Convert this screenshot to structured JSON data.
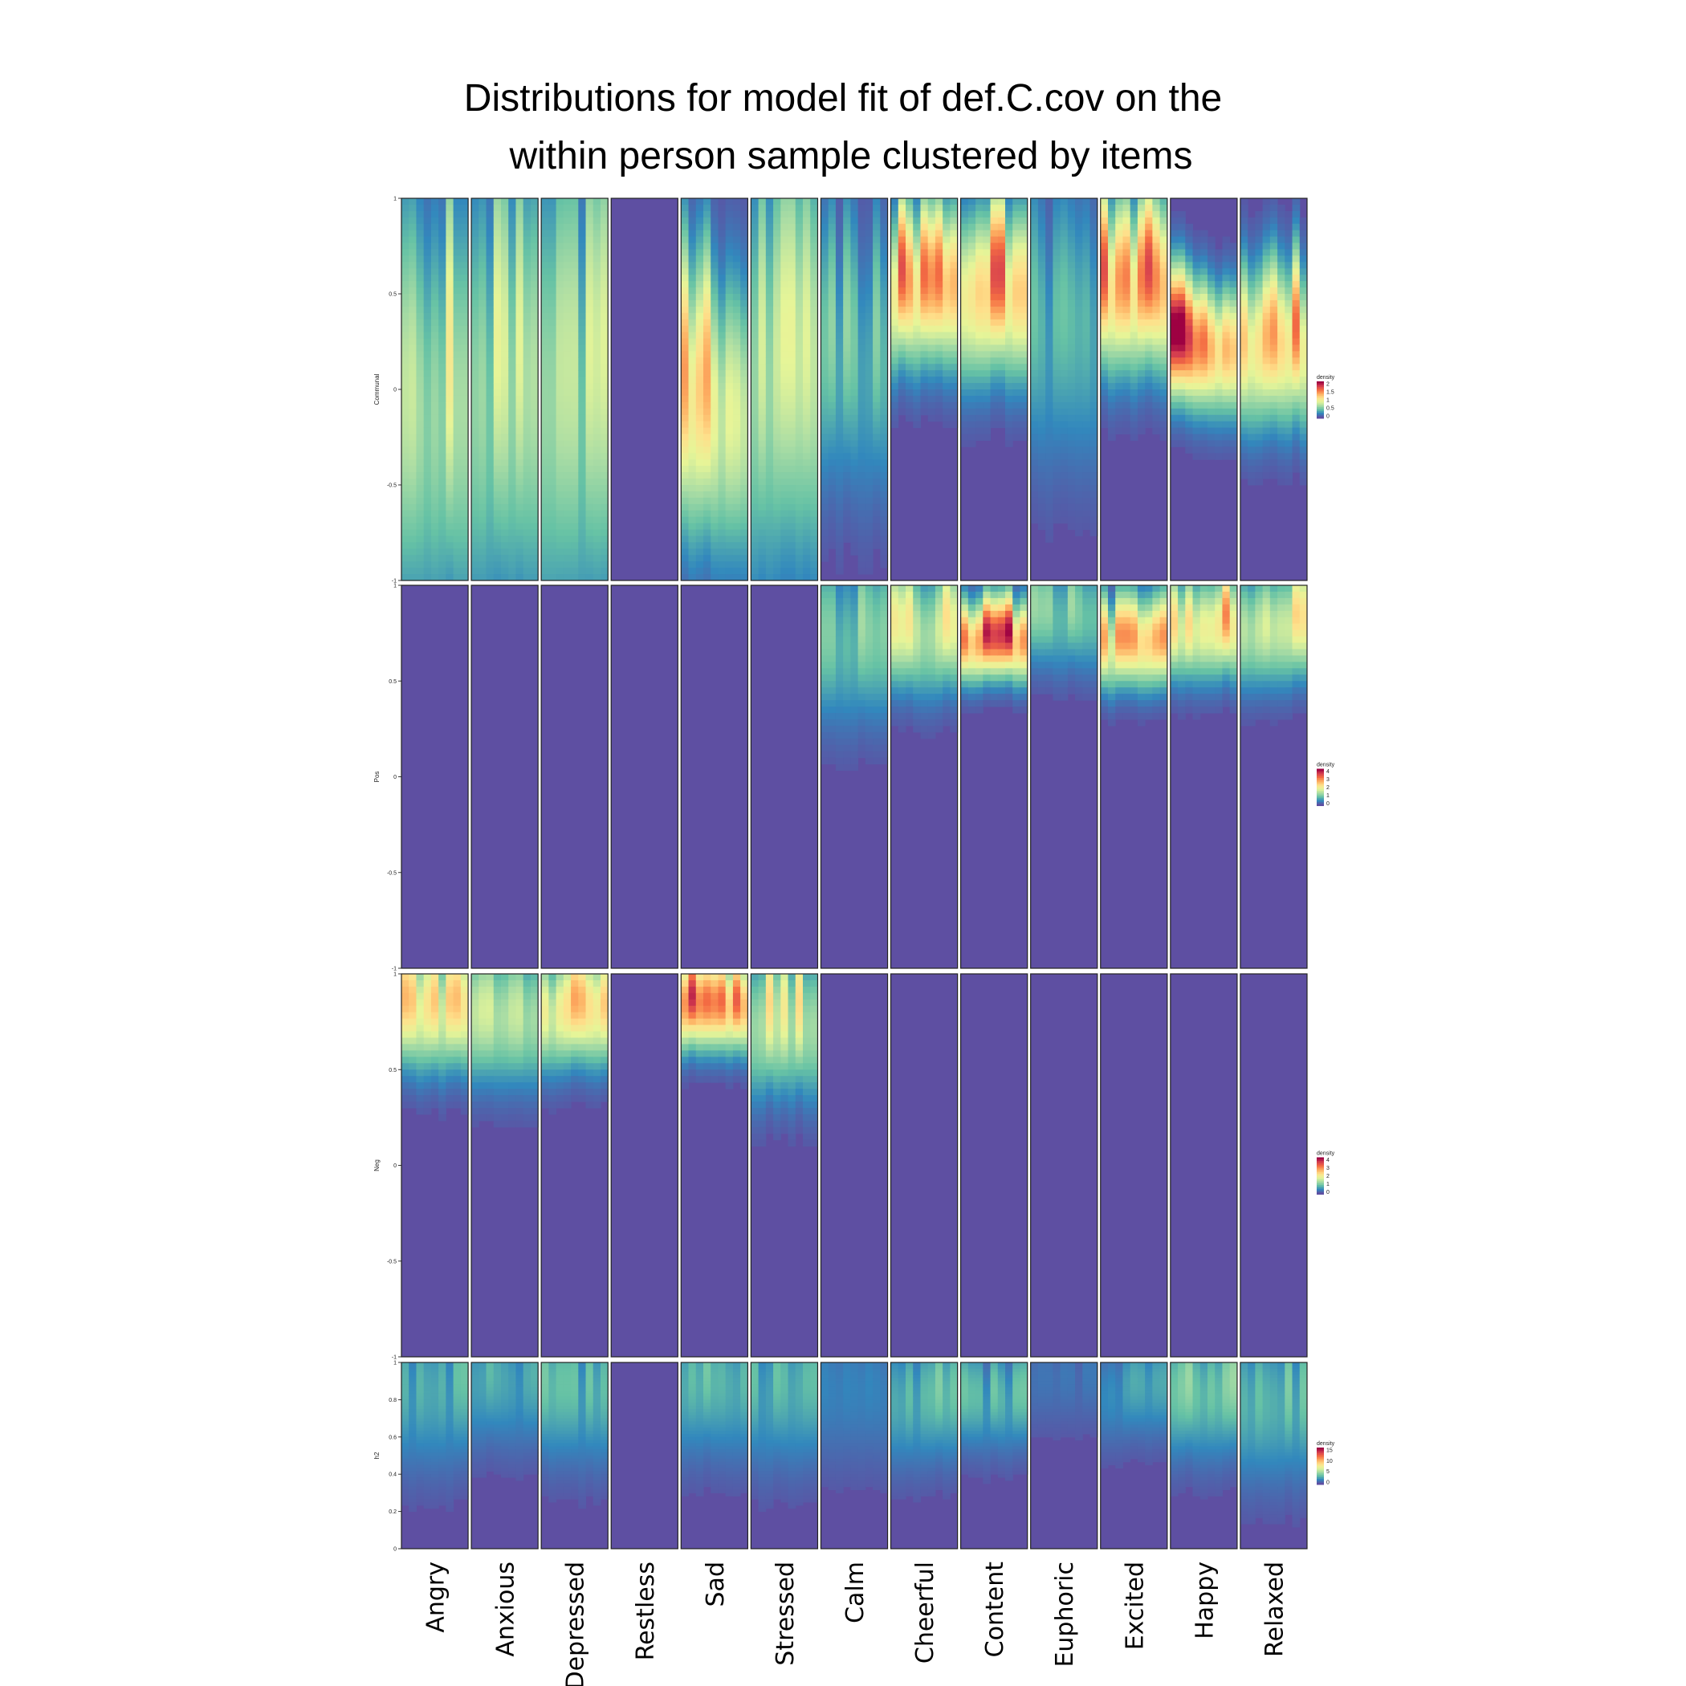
{
  "title_line1": "Distributions for model fit of def.C.cov on the",
  "title_line2": "within person sample clustered by items",
  "chart_data": {
    "type": "heatmap",
    "title": "Distributions for model fit of def.C.cov on the within person sample clustered by items",
    "items": [
      "Angry",
      "Anxious",
      "Depressed",
      "Restless",
      "Sad",
      "Stressed",
      "Calm",
      "Cheerful",
      "Content",
      "Euphoric",
      "Excited",
      "Happy",
      "Relaxed"
    ],
    "colors": [
      "#5E4FA2",
      "#3288BD",
      "#66C2A5",
      "#ABDDA4",
      "#E6F598",
      "#FEE08B",
      "#FDAE61",
      "#F46D43",
      "#D53E4F",
      "#9E0142"
    ],
    "panels": [
      {
        "label": "Communal",
        "ylim": [
          -1,
          1
        ],
        "yticks": [
          "1",
          "0.5",
          "0",
          "-0.5",
          "-1"
        ],
        "legend_title": "density",
        "legend_ticks": [
          "2",
          "1.5",
          "1",
          "0.5",
          "0"
        ],
        "max_density": 2,
        "cells": [
          {
            "item": "Angry",
            "center": 0.0,
            "width": 0.75,
            "peak": 0.95
          },
          {
            "item": "Anxious",
            "center": 0.05,
            "width": 0.8,
            "peak": 0.85
          },
          {
            "item": "Depressed",
            "center": 0.0,
            "width": 0.85,
            "peak": 0.8
          },
          {
            "item": "Restless",
            "center": 0.0,
            "width": 0.5,
            "peak": 0.0
          },
          {
            "item": "Sad",
            "center": -0.05,
            "width": 0.5,
            "peak": 1.3
          },
          {
            "item": "Stressed",
            "center": 0.1,
            "width": 0.75,
            "peak": 0.85
          },
          {
            "item": "Calm",
            "center": 0.2,
            "width": 0.5,
            "peak": 0.55
          },
          {
            "item": "Cheerful",
            "center": 0.55,
            "width": 0.28,
            "peak": 1.55
          },
          {
            "item": "Content",
            "center": 0.55,
            "width": 0.3,
            "peak": 1.7
          },
          {
            "item": "Euphoric",
            "center": 0.3,
            "width": 0.5,
            "peak": 0.45
          },
          {
            "item": "Excited",
            "center": 0.55,
            "width": 0.3,
            "peak": 1.6
          },
          {
            "item": "Happy",
            "center": 0.25,
            "width": 0.22,
            "peak": 1.95
          },
          {
            "item": "Relaxed",
            "center": 0.25,
            "width": 0.28,
            "peak": 1.45
          }
        ]
      },
      {
        "label": "Pos",
        "ylim": [
          -1,
          1
        ],
        "yticks": [
          "1",
          "0.5",
          "0",
          "-0.5",
          "-1"
        ],
        "legend_title": "density",
        "legend_ticks": [
          "4",
          "3",
          "2",
          "1",
          "0"
        ],
        "max_density": 4,
        "cells": [
          {
            "item": "Angry",
            "center": 0.0,
            "width": 0.5,
            "peak": 0.0
          },
          {
            "item": "Anxious",
            "center": 0.0,
            "width": 0.5,
            "peak": 0.0
          },
          {
            "item": "Depressed",
            "center": 0.0,
            "width": 0.5,
            "peak": 0.0
          },
          {
            "item": "Restless",
            "center": 0.0,
            "width": 0.5,
            "peak": 0.0
          },
          {
            "item": "Sad",
            "center": 0.0,
            "width": 0.5,
            "peak": 0.0
          },
          {
            "item": "Stressed",
            "center": 0.0,
            "width": 0.5,
            "peak": 0.0
          },
          {
            "item": "Calm",
            "center": 0.75,
            "width": 0.3,
            "peak": 1.3
          },
          {
            "item": "Cheerful",
            "center": 0.78,
            "width": 0.22,
            "peak": 2.1
          },
          {
            "item": "Content",
            "center": 0.72,
            "width": 0.14,
            "peak": 3.7
          },
          {
            "item": "Euphoric",
            "center": 0.85,
            "width": 0.2,
            "peak": 1.2
          },
          {
            "item": "Excited",
            "center": 0.7,
            "width": 0.16,
            "peak": 2.8
          },
          {
            "item": "Happy",
            "center": 0.8,
            "width": 0.18,
            "peak": 2.8
          },
          {
            "item": "Relaxed",
            "center": 0.8,
            "width": 0.2,
            "peak": 2.2
          }
        ]
      },
      {
        "label": "Neg",
        "ylim": [
          -1,
          1
        ],
        "yticks": [
          "1",
          "0.5",
          "0",
          "-0.5",
          "-1"
        ],
        "legend_title": "density",
        "legend_ticks": [
          "4",
          "3",
          "2",
          "1",
          "0"
        ],
        "max_density": 4,
        "cells": [
          {
            "item": "Angry",
            "center": 0.82,
            "width": 0.22,
            "peak": 2.4
          },
          {
            "item": "Anxious",
            "center": 0.82,
            "width": 0.24,
            "peak": 2.1
          },
          {
            "item": "Depressed",
            "center": 0.82,
            "width": 0.2,
            "peak": 2.6
          },
          {
            "item": "Restless",
            "center": 0.0,
            "width": 0.5,
            "peak": 0.0
          },
          {
            "item": "Sad",
            "center": 0.85,
            "width": 0.16,
            "peak": 3.6
          },
          {
            "item": "Stressed",
            "center": 0.78,
            "width": 0.26,
            "peak": 2.1
          },
          {
            "item": "Calm",
            "center": 0.0,
            "width": 0.5,
            "peak": 0.0
          },
          {
            "item": "Cheerful",
            "center": 0.0,
            "width": 0.5,
            "peak": 0.0
          },
          {
            "item": "Content",
            "center": 0.0,
            "width": 0.5,
            "peak": 0.0
          },
          {
            "item": "Euphoric",
            "center": 0.0,
            "width": 0.5,
            "peak": 0.0
          },
          {
            "item": "Excited",
            "center": 0.0,
            "width": 0.5,
            "peak": 0.0
          },
          {
            "item": "Happy",
            "center": 0.0,
            "width": 0.5,
            "peak": 0.0
          },
          {
            "item": "Relaxed",
            "center": 0.0,
            "width": 0.5,
            "peak": 0.0
          }
        ]
      },
      {
        "label": "h2",
        "ylim": [
          0,
          1
        ],
        "yticks": [
          "1",
          "0.8",
          "0.6",
          "0.4",
          "0.2",
          "0"
        ],
        "legend_title": "density",
        "legend_ticks": [
          "15",
          "10",
          "5",
          "0"
        ],
        "max_density": 15,
        "cells": [
          {
            "item": "Angry",
            "center": 0.85,
            "width": 0.3,
            "peak": 3.2
          },
          {
            "item": "Anxious",
            "center": 0.9,
            "width": 0.25,
            "peak": 3.0
          },
          {
            "item": "Depressed",
            "center": 0.85,
            "width": 0.28,
            "peak": 3.6
          },
          {
            "item": "Restless",
            "center": 0.9,
            "width": 0.2,
            "peak": 0.0
          },
          {
            "item": "Sad",
            "center": 0.88,
            "width": 0.28,
            "peak": 3.4
          },
          {
            "item": "Stressed",
            "center": 0.85,
            "width": 0.3,
            "peak": 3.2
          },
          {
            "item": "Calm",
            "center": 0.8,
            "width": 0.3,
            "peak": 1.5
          },
          {
            "item": "Cheerful",
            "center": 0.82,
            "width": 0.25,
            "peak": 3.8
          },
          {
            "item": "Content",
            "center": 0.8,
            "width": 0.2,
            "peak": 3.4
          },
          {
            "item": "Euphoric",
            "center": 0.9,
            "width": 0.2,
            "peak": 1.2
          },
          {
            "item": "Excited",
            "center": 0.85,
            "width": 0.2,
            "peak": 2.6
          },
          {
            "item": "Happy",
            "center": 0.85,
            "width": 0.25,
            "peak": 4.4
          },
          {
            "item": "Relaxed",
            "center": 0.8,
            "width": 0.3,
            "peak": 3.8
          }
        ]
      }
    ]
  }
}
